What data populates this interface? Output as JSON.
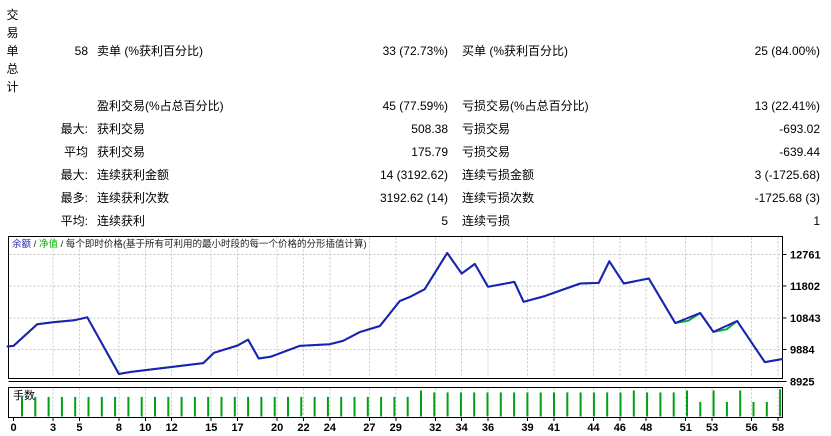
{
  "report": {
    "section_label": "交易单总计",
    "rows": [
      {
        "prefix": "58",
        "name1": "卖单 (%获利百分比)",
        "val1": "33 (72.73%)",
        "name2": "买单 (%获利百分比)",
        "val2": "25 (84.00%)"
      },
      {
        "prefix": "",
        "name1": "盈利交易(%占总百分比)",
        "val1": "45 (77.59%)",
        "name2": "亏损交易(%占总百分比)",
        "val2": "13 (22.41%)"
      },
      {
        "prefix": "最大:",
        "name1": "获利交易",
        "val1": "508.38",
        "name2": "亏损交易",
        "val2": "-693.02"
      },
      {
        "prefix": "平均",
        "name1": "获利交易",
        "val1": "175.79",
        "name2": "亏损交易",
        "val2": "-639.44"
      },
      {
        "prefix": "最大:",
        "name1": "连续获利金额",
        "val1": "14 (3192.62)",
        "name2": "连续亏损金额",
        "val2": "3 (-1725.68)"
      },
      {
        "prefix": "最多:",
        "name1": "连续获利次数",
        "val1": "3192.62 (14)",
        "name2": "连续亏损次数",
        "val2": "-1725.68 (3)"
      },
      {
        "prefix": "平均:",
        "name1": "连续获利",
        "val1": "5",
        "name2": "连续亏损",
        "val2": "1"
      }
    ]
  },
  "chart_data": {
    "type": "line",
    "legend": {
      "balance_label": "余额",
      "equity_label": "净值",
      "separator": " / ",
      "price_note": "每个即时价格(基于所有可利用的最小时段的每一个价格的分形插值计算)"
    },
    "colors": {
      "balance": "#1e1eb9",
      "equity": "#00ae3c",
      "legend_balance": "#1e1eb9",
      "legend_equity": "#00b400",
      "grid": "#c8c8c8",
      "axis": "#000000",
      "lots_bar": "#00a014"
    },
    "y_ticks": [
      12761,
      11802,
      10843,
      9884,
      8925
    ],
    "x_ticks": [
      0,
      3,
      5,
      8,
      10,
      12,
      15,
      17,
      20,
      22,
      24,
      27,
      29,
      32,
      34,
      36,
      39,
      41,
      44,
      46,
      48,
      51,
      53,
      56,
      58
    ],
    "x_range": [
      0,
      58
    ],
    "y_bottom": 8925,
    "y_step": 959,
    "series": [
      {
        "name": "equity",
        "points": [
          [
            -0.45,
            9980
          ],
          [
            0,
            10000
          ],
          [
            1.8,
            10650
          ],
          [
            3,
            10710
          ],
          [
            4.6,
            10770
          ],
          [
            5.6,
            10860
          ],
          [
            8,
            9150
          ],
          [
            9,
            9220
          ],
          [
            14.4,
            9480
          ],
          [
            15.2,
            9790
          ],
          [
            17,
            10010
          ],
          [
            17.8,
            10190
          ],
          [
            18.6,
            9620
          ],
          [
            19.5,
            9670
          ],
          [
            21.7,
            10000
          ],
          [
            24,
            10050
          ],
          [
            25,
            10150
          ],
          [
            26.3,
            10420
          ],
          [
            27.8,
            10600
          ],
          [
            29.3,
            11350
          ],
          [
            30.1,
            11480
          ],
          [
            31.2,
            11710
          ],
          [
            32.9,
            12800
          ],
          [
            34,
            12180
          ],
          [
            35,
            12470
          ],
          [
            36,
            11780
          ],
          [
            38,
            11930
          ],
          [
            38.7,
            11330
          ],
          [
            40.3,
            11500
          ],
          [
            43,
            11880
          ],
          [
            44.4,
            11900
          ],
          [
            45.2,
            12550
          ],
          [
            46.3,
            11880
          ],
          [
            48.2,
            12030
          ],
          [
            50.2,
            10690
          ],
          [
            51.2,
            10760
          ],
          [
            52.1,
            10990
          ],
          [
            53.1,
            10420
          ],
          [
            54.1,
            10500
          ],
          [
            54.9,
            10750
          ],
          [
            57,
            9510
          ],
          [
            58.3,
            9600
          ]
        ]
      },
      {
        "name": "balance",
        "points": [
          [
            -0.45,
            9980
          ],
          [
            0,
            10000
          ],
          [
            1.8,
            10650
          ],
          [
            3,
            10710
          ],
          [
            4.6,
            10770
          ],
          [
            5.6,
            10860
          ],
          [
            8,
            9150
          ],
          [
            9,
            9220
          ],
          [
            14.4,
            9480
          ],
          [
            15.2,
            9790
          ],
          [
            17,
            10010
          ],
          [
            17.8,
            10190
          ],
          [
            18.6,
            9620
          ],
          [
            19.5,
            9670
          ],
          [
            21.7,
            10000
          ],
          [
            24,
            10050
          ],
          [
            25,
            10150
          ],
          [
            26.3,
            10420
          ],
          [
            27.8,
            10600
          ],
          [
            29.3,
            11350
          ],
          [
            30.1,
            11480
          ],
          [
            31.2,
            11710
          ],
          [
            32.9,
            12800
          ],
          [
            34,
            12180
          ],
          [
            35,
            12470
          ],
          [
            36,
            11780
          ],
          [
            38,
            11930
          ],
          [
            38.7,
            11330
          ],
          [
            40.3,
            11500
          ],
          [
            43,
            11880
          ],
          [
            44.4,
            11900
          ],
          [
            45.2,
            12550
          ],
          [
            46.3,
            11880
          ],
          [
            48.2,
            12030
          ],
          [
            50.2,
            10690
          ],
          [
            52.1,
            10990
          ],
          [
            53.1,
            10420
          ],
          [
            54.9,
            10750
          ],
          [
            57,
            9510
          ],
          [
            58.3,
            9600
          ]
        ]
      }
    ],
    "lots": {
      "label": "手数",
      "bar_heights": [
        0.7,
        0.7,
        0.7,
        0.7,
        0.7,
        0.7,
        0.7,
        0.7,
        0.7,
        0.7,
        0.7,
        0.7,
        0.7,
        0.7,
        0.7,
        0.7,
        0.7,
        0.7,
        0.7,
        0.7,
        0.7,
        0.7,
        0.7,
        0.7,
        0.7,
        0.7,
        0.7,
        0.7,
        0.7,
        0.7,
        0.93,
        0.86,
        0.86,
        0.86,
        0.86,
        0.86,
        0.86,
        0.86,
        0.86,
        0.86,
        0.86,
        0.86,
        0.86,
        0.86,
        0.86,
        0.86,
        0.93,
        0.86,
        0.86,
        0.86,
        0.93,
        0.52,
        0.93,
        0.52,
        0.93,
        0.52,
        0.52,
        0.97
      ]
    }
  }
}
